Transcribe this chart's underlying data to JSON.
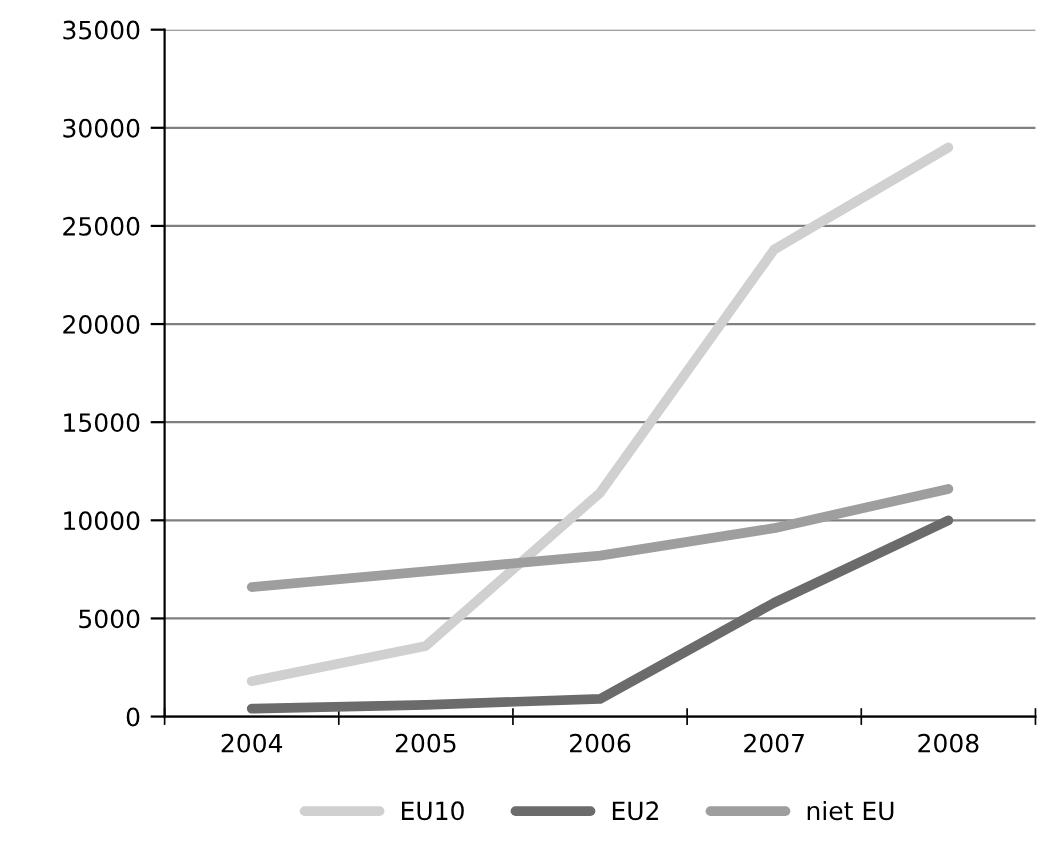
{
  "chart_data": {
    "type": "line",
    "categories": [
      "2004",
      "2005",
      "2006",
      "2007",
      "2008"
    ],
    "series": [
      {
        "name": "EU10",
        "color": "#d0d0d0",
        "values": [
          1800,
          3600,
          11400,
          23800,
          29000
        ]
      },
      {
        "name": "EU2",
        "color": "#6b6b6b",
        "values": [
          400,
          600,
          900,
          5800,
          10000
        ]
      },
      {
        "name": "niet EU",
        "color": "#9e9e9e",
        "values": [
          6600,
          7400,
          8200,
          9600,
          11600
        ]
      }
    ],
    "ylim": [
      0,
      35000
    ],
    "yticks": [
      0,
      5000,
      10000,
      15000,
      20000,
      25000,
      30000,
      35000
    ],
    "grid": "y",
    "legend": "bottom",
    "marker": "none",
    "line_style": "solid"
  }
}
